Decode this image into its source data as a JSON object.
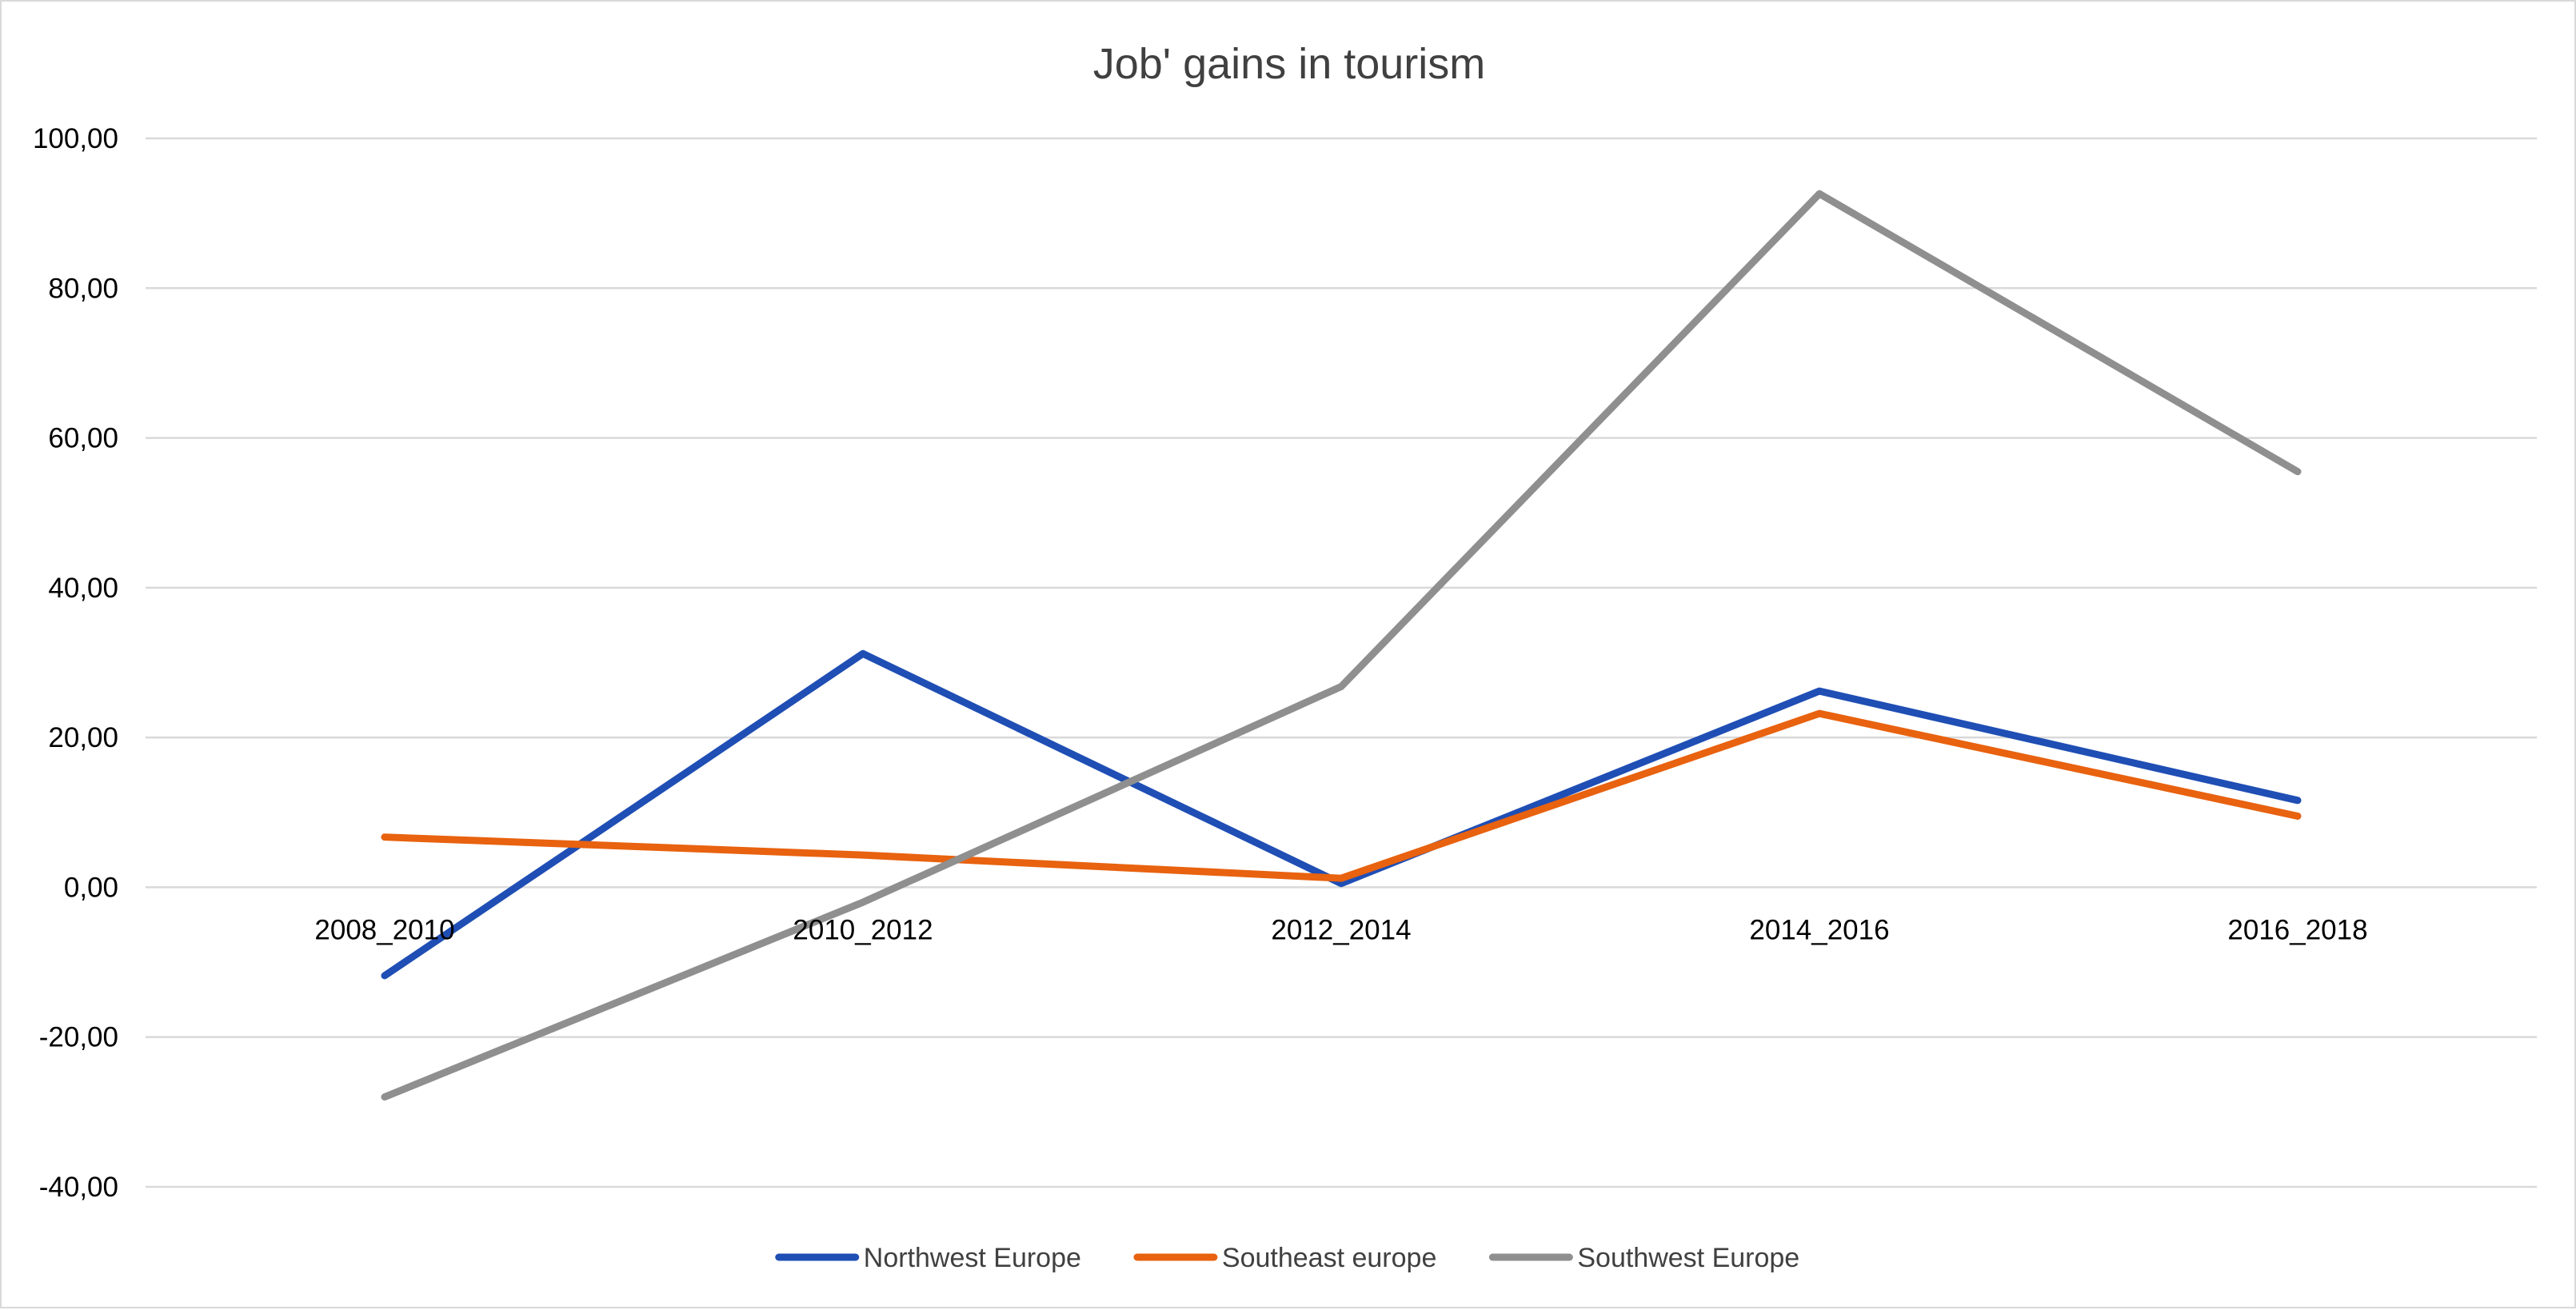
{
  "chart_data": {
    "type": "line",
    "title": "Job' gains in tourism",
    "xlabel": "",
    "ylabel": "",
    "categories": [
      "2008_2010",
      "2010_2012",
      "2012_2014",
      "2014_2016",
      "2016_2018"
    ],
    "series": [
      {
        "name": "Northwest Europe",
        "color": "#1f4eb4",
        "values": [
          -11.8,
          31.2,
          0.5,
          26.2,
          11.6
        ]
      },
      {
        "name": "Southeast europe",
        "color": "#e8620f",
        "values": [
          6.7,
          4.3,
          1.2,
          23.2,
          9.5
        ]
      },
      {
        "name": "Southwest Europe",
        "color": "#8f8f8f",
        "values": [
          -28.0,
          -2.0,
          26.8,
          92.6,
          55.5
        ]
      }
    ],
    "ylim": [
      -40,
      100
    ],
    "yticks": [
      "-40,00",
      "-20,00",
      "0,00",
      "20,00",
      "40,00",
      "60,00",
      "80,00",
      "100,00"
    ],
    "grid": true,
    "legend": "bottom-center",
    "gridline_color": "#d9d9d9"
  }
}
